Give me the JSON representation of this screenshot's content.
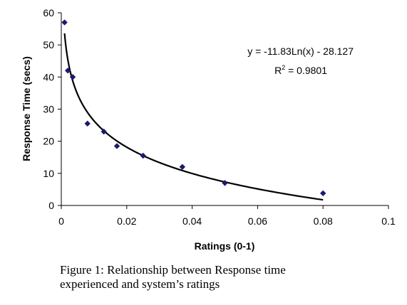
{
  "chart_data": {
    "type": "scatter",
    "xlabel": "Ratings (0-1)",
    "ylabel": "Response Time (secs)",
    "xlim": [
      0,
      0.1
    ],
    "ylim": [
      0,
      60
    ],
    "x_ticks": [
      "0",
      "0.02",
      "0.04",
      "0.06",
      "0.08",
      "0.1"
    ],
    "y_ticks": [
      "0",
      "10",
      "20",
      "30",
      "40",
      "50",
      "60"
    ],
    "grid": false,
    "points": [
      {
        "x": 0.001,
        "y": 57
      },
      {
        "x": 0.002,
        "y": 42
      },
      {
        "x": 0.0035,
        "y": 40
      },
      {
        "x": 0.008,
        "y": 25.5
      },
      {
        "x": 0.013,
        "y": 23
      },
      {
        "x": 0.017,
        "y": 18.5
      },
      {
        "x": 0.025,
        "y": 15.5
      },
      {
        "x": 0.037,
        "y": 12
      },
      {
        "x": 0.05,
        "y": 7
      },
      {
        "x": 0.08,
        "y": 3.8
      }
    ],
    "marker_color": "#1a1a6e",
    "trendline": {
      "type": "logarithmic",
      "a": -11.83,
      "b": -28.127,
      "x_range": [
        0.001,
        0.08
      ],
      "equation_label": "y = -11.83Ln(x) - 28.127",
      "r2_prefix": "R",
      "r2_exp": "2",
      "r2_value": " = 0.9801"
    }
  },
  "caption": {
    "line1": "Figure 1: Relationship between Response time",
    "line2": "experienced and system’s ratings"
  }
}
